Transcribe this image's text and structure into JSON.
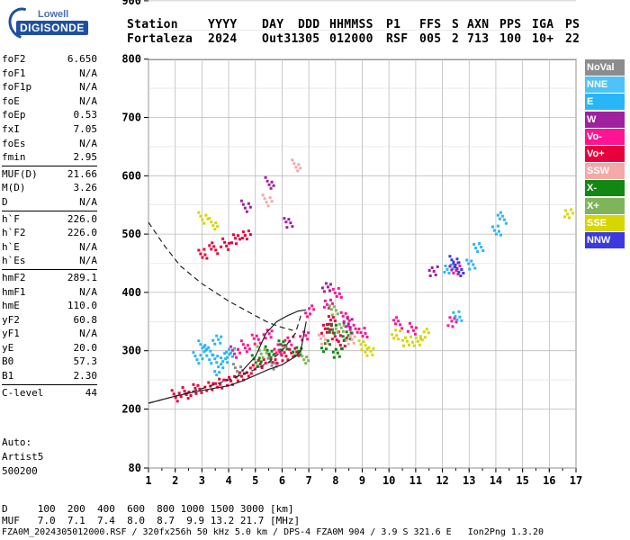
{
  "header": {
    "labels": [
      "Station",
      "YYYY",
      "DAY",
      "DDD",
      "HHMMSS",
      "P1",
      "FFS",
      "S",
      "AXN",
      "PPS",
      "IGA",
      "PS"
    ],
    "values": [
      "Fortaleza",
      "2024",
      "Out31",
      "305",
      "012000",
      "RSF",
      "005",
      "2",
      "713",
      "100",
      "10+",
      "22"
    ]
  },
  "logo": {
    "line1": "Lowell",
    "line2": "DIGISONDE"
  },
  "params": [
    {
      "k": "foF2",
      "v": "6.650"
    },
    {
      "k": "foF1",
      "v": "N/A"
    },
    {
      "k": "foF1p",
      "v": "N/A"
    },
    {
      "k": "foE",
      "v": "N/A"
    },
    {
      "k": "foEp",
      "v": "0.53"
    },
    {
      "k": "fxI",
      "v": "7.05"
    },
    {
      "k": "foEs",
      "v": "N/A"
    },
    {
      "k": "fmin",
      "v": "2.95"
    },
    {
      "k": "MUF(D)",
      "v": "21.66"
    },
    {
      "k": "M(D)",
      "v": "3.26"
    },
    {
      "k": "D",
      "v": "N/A"
    },
    {
      "k": "h`F",
      "v": "226.0"
    },
    {
      "k": "h`F2",
      "v": "226.0"
    },
    {
      "k": "h`E",
      "v": "N/A"
    },
    {
      "k": "h`Es",
      "v": "N/A"
    },
    {
      "k": "hmF2",
      "v": "289.1"
    },
    {
      "k": "hmF1",
      "v": "N/A"
    },
    {
      "k": "hmE",
      "v": "110.0"
    },
    {
      "k": "yF2",
      "v": "60.8"
    },
    {
      "k": "yF1",
      "v": "N/A"
    },
    {
      "k": "yE",
      "v": "20.0"
    },
    {
      "k": "B0",
      "v": "57.3"
    },
    {
      "k": "B1",
      "v": "2.30"
    },
    {
      "k": "C-level",
      "v": "44"
    }
  ],
  "auto": {
    "line1": "Auto:",
    "line2": "Artist5",
    "line3": "500200"
  },
  "legend": [
    {
      "label": "NoVal",
      "color": "#8c8c8c"
    },
    {
      "label": "NNE",
      "color": "#4fc3f7"
    },
    {
      "label": "E",
      "color": "#29b6f6"
    },
    {
      "label": "W",
      "color": "#a020a0"
    },
    {
      "label": "Vo-",
      "color": "#ff1493"
    },
    {
      "label": "Vo+",
      "color": "#e8003c"
    },
    {
      "label": "SSW",
      "color": "#f4a8a8"
    },
    {
      "label": "X-",
      "color": "#118811"
    },
    {
      "label": "X+",
      "color": "#7fb55a"
    },
    {
      "label": "SSE",
      "color": "#d6d600"
    },
    {
      "label": "NNW",
      "color": "#3a3ae0"
    }
  ],
  "footer": {
    "d_row": "D     100  200  400  600  800 1000 1500 3000 [km]",
    "muf_row": "MUF   7.0  7.1  7.4  8.0  8.7  9.9 13.2 21.7 [MHz]",
    "info": "FZA0M_2024305012000.RSF / 320fx256h 50 kHz 5.0 km / DPS-4 FZA0M 904 / 3.9 S 321.6 E   Ion2Png 1.3.20"
  },
  "chart_data": {
    "type": "scatter",
    "xlim": [
      1,
      17
    ],
    "ylim": [
      80,
      900
    ],
    "x_ticks": [
      "1",
      "2",
      "3",
      "4",
      "5",
      "6",
      "7",
      "8",
      "9",
      "10",
      "11",
      "12",
      "13",
      "14",
      "15",
      "16",
      "17"
    ],
    "y_ticks": [
      "80",
      "200",
      "300",
      "400",
      "500",
      "600",
      "700",
      "800",
      "900"
    ],
    "grid": true,
    "series": [
      {
        "name": "Vo+",
        "color": "#e8003c",
        "points": [
          [
            2.0,
            225
          ],
          [
            2.4,
            230
          ],
          [
            2.8,
            235
          ],
          [
            3.2,
            240
          ],
          [
            3.6,
            246
          ],
          [
            4.0,
            252
          ],
          [
            4.4,
            260
          ],
          [
            4.8,
            268
          ],
          [
            5.2,
            278
          ],
          [
            5.6,
            287
          ],
          [
            6.0,
            293
          ],
          [
            6.4,
            300
          ],
          [
            3.0,
            470
          ],
          [
            3.4,
            478
          ],
          [
            3.8,
            485
          ],
          [
            4.2,
            492
          ],
          [
            4.6,
            500
          ],
          [
            7.6,
            340
          ],
          [
            7.8,
            355
          ],
          [
            8.0,
            330
          ],
          [
            8.2,
            315
          ]
        ]
      },
      {
        "name": "Vo-",
        "color": "#ff1493",
        "points": [
          [
            4.2,
            300
          ],
          [
            4.6,
            310
          ],
          [
            5.0,
            320
          ],
          [
            5.4,
            330
          ],
          [
            5.8,
            305
          ],
          [
            6.2,
            320
          ],
          [
            6.8,
            330
          ],
          [
            7.0,
            370
          ],
          [
            7.7,
            380
          ],
          [
            8.0,
            400
          ],
          [
            8.3,
            360
          ],
          [
            8.6,
            340
          ],
          [
            9.0,
            335
          ],
          [
            10.3,
            350
          ],
          [
            10.8,
            340
          ],
          [
            12.3,
            350
          ],
          [
            12.5,
            440
          ]
        ]
      },
      {
        "name": "E",
        "color": "#29b6f6",
        "points": [
          [
            2.8,
            290
          ],
          [
            3.0,
            310
          ],
          [
            3.2,
            300
          ],
          [
            3.5,
            320
          ],
          [
            3.8,
            290
          ],
          [
            4.0,
            300
          ],
          [
            3.4,
            290
          ],
          [
            3.6,
            270
          ],
          [
            12.2,
            440
          ],
          [
            12.5,
            360
          ],
          [
            13.0,
            450
          ],
          [
            13.3,
            480
          ],
          [
            14.0,
            510
          ],
          [
            14.2,
            530
          ]
        ]
      },
      {
        "name": "X-",
        "color": "#118811",
        "points": [
          [
            5.0,
            285
          ],
          [
            5.5,
            300
          ],
          [
            6.0,
            310
          ],
          [
            6.5,
            300
          ],
          [
            7.8,
            340
          ],
          [
            8.0,
            300
          ],
          [
            8.4,
            330
          ],
          [
            7.6,
            310
          ]
        ]
      },
      {
        "name": "SSE",
        "color": "#d6d600",
        "points": [
          [
            3.0,
            530
          ],
          [
            3.4,
            520
          ],
          [
            9.0,
            310
          ],
          [
            9.2,
            300
          ],
          [
            10.2,
            330
          ],
          [
            10.6,
            320
          ],
          [
            11.0,
            320
          ],
          [
            11.3,
            330
          ],
          [
            16.7,
            535
          ]
        ]
      },
      {
        "name": "W",
        "color": "#a020a0",
        "points": [
          [
            4.6,
            550
          ],
          [
            5.5,
            590
          ],
          [
            6.2,
            520
          ],
          [
            7.6,
            410
          ],
          [
            8.4,
            350
          ],
          [
            11.6,
            440
          ],
          [
            12.4,
            450
          ]
        ]
      },
      {
        "name": "SSW",
        "color": "#f4a8a8",
        "points": [
          [
            5.4,
            560
          ],
          [
            6.5,
            620
          ],
          [
            7.5,
            320
          ],
          [
            8.5,
            320
          ]
        ]
      },
      {
        "name": "X+",
        "color": "#7fb55a",
        "points": [
          [
            5.2,
            300
          ],
          [
            6.8,
            290
          ],
          [
            7.9,
            370
          ],
          [
            8.1,
            340
          ]
        ]
      },
      {
        "name": "NNW",
        "color": "#3a3ae0",
        "points": [
          [
            12.4,
            455
          ],
          [
            12.6,
            440
          ]
        ]
      },
      {
        "name": "NoVal",
        "color": "#8c8c8c",
        "points": [
          [
            4.3,
            270
          ],
          [
            5.6,
            280
          ]
        ]
      }
    ],
    "curves": [
      {
        "style": "solid",
        "points": [
          [
            1.0,
            210
          ],
          [
            2.0,
            222
          ],
          [
            3.0,
            232
          ],
          [
            4.0,
            240
          ],
          [
            4.5,
            248
          ],
          [
            5.0,
            258
          ],
          [
            5.5,
            268
          ],
          [
            6.0,
            276
          ],
          [
            6.5,
            290
          ],
          [
            6.7,
            300
          ],
          [
            6.9,
            350
          ]
        ]
      },
      {
        "style": "dashed",
        "points": [
          [
            1.0,
            210
          ],
          [
            2.0,
            222
          ],
          [
            3.0,
            235
          ],
          [
            4.0,
            250
          ],
          [
            5.0,
            268
          ],
          [
            5.5,
            280
          ],
          [
            6.0,
            300
          ],
          [
            6.5,
            330
          ],
          [
            6.7,
            360
          ]
        ]
      },
      {
        "style": "dashed",
        "points": [
          [
            1.0,
            520
          ],
          [
            1.6,
            480
          ],
          [
            2.2,
            445
          ],
          [
            3.0,
            415
          ],
          [
            4.0,
            385
          ],
          [
            5.0,
            360
          ],
          [
            5.5,
            348
          ],
          [
            6.0,
            340
          ],
          [
            6.4,
            335
          ]
        ]
      },
      {
        "style": "solid",
        "points": [
          [
            4.5,
            265
          ],
          [
            5.0,
            290
          ],
          [
            5.4,
            330
          ],
          [
            5.8,
            350
          ],
          [
            6.2,
            360
          ],
          [
            6.6,
            368
          ],
          [
            6.9,
            370
          ]
        ]
      }
    ]
  }
}
